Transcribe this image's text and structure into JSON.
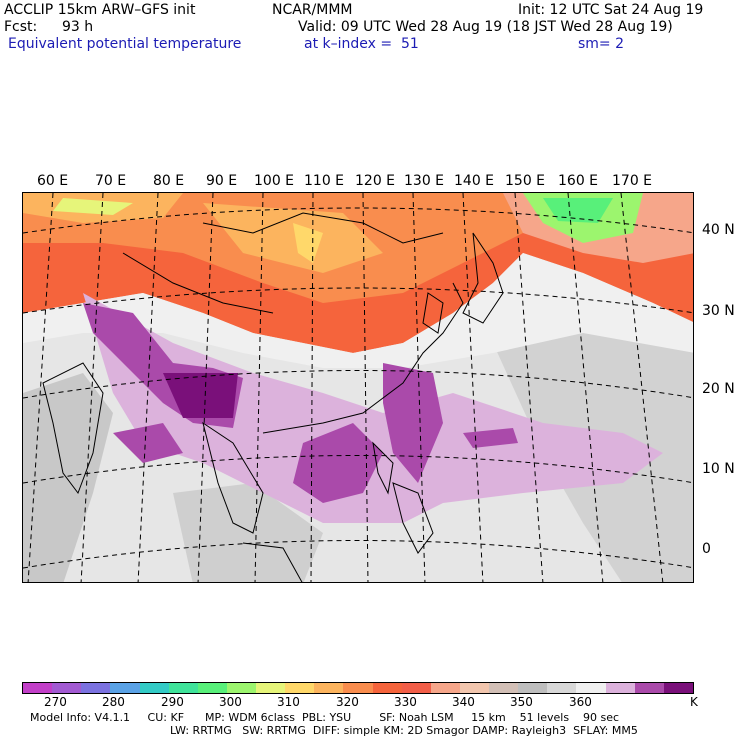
{
  "header": {
    "model": "ACCLIP 15km ARW–GFS init",
    "org": "NCAR/MMM",
    "init": "Init: 12 UTC Sat 24 Aug 19",
    "fcst_label": "Fcst:",
    "fcst_value": "93 h",
    "valid": "Valid: 09 UTC Wed 28 Aug 19 (18 JST Wed 28 Aug 19)",
    "field": "Equivalent potential temperature",
    "level": "at k–index =  51",
    "smooth": "sm= 2"
  },
  "map": {
    "lon_labels": [
      "60 E",
      "70 E",
      "80 E",
      "90 E",
      "100 E",
      "110 E",
      "120 E",
      "130 E",
      "140 E",
      "150 E",
      "160 E",
      "170 E"
    ],
    "lat_labels": [
      "40 N",
      "30 N",
      "20 N",
      "10 N",
      "0"
    ]
  },
  "colorbar": {
    "colors": [
      "#c23fc8",
      "#a25ad2",
      "#7b72e0",
      "#5aa2e6",
      "#33cbc6",
      "#3fe39a",
      "#58f07a",
      "#9cf56e",
      "#e6f57a",
      "#ffd86a",
      "#fcb45e",
      "#f98d4e",
      "#f5643c",
      "#f25e48",
      "#f6a68a",
      "#f2c6ae",
      "#d2bfb6",
      "#bebebe",
      "#d8d8d8",
      "#f0f0f0",
      "#dcb2dc",
      "#aa4aaa",
      "#7a107a"
    ],
    "ticks": [
      "270",
      "280",
      "290",
      "300",
      "310",
      "320",
      "330",
      "340",
      "350",
      "360"
    ],
    "unit": "K"
  },
  "footer": {
    "line1": "Model Info: V4.1.1     CU: KF      MP: WDM 6class  PBL: YSU        SF: Noah LSM     15 km    51 levels    90 sec",
    "line2": "LW: RRTMG   SW: RRTMG  DIFF: simple KM: 2D Smagor DAMP: Rayleigh3  SFLAY: MM5"
  }
}
